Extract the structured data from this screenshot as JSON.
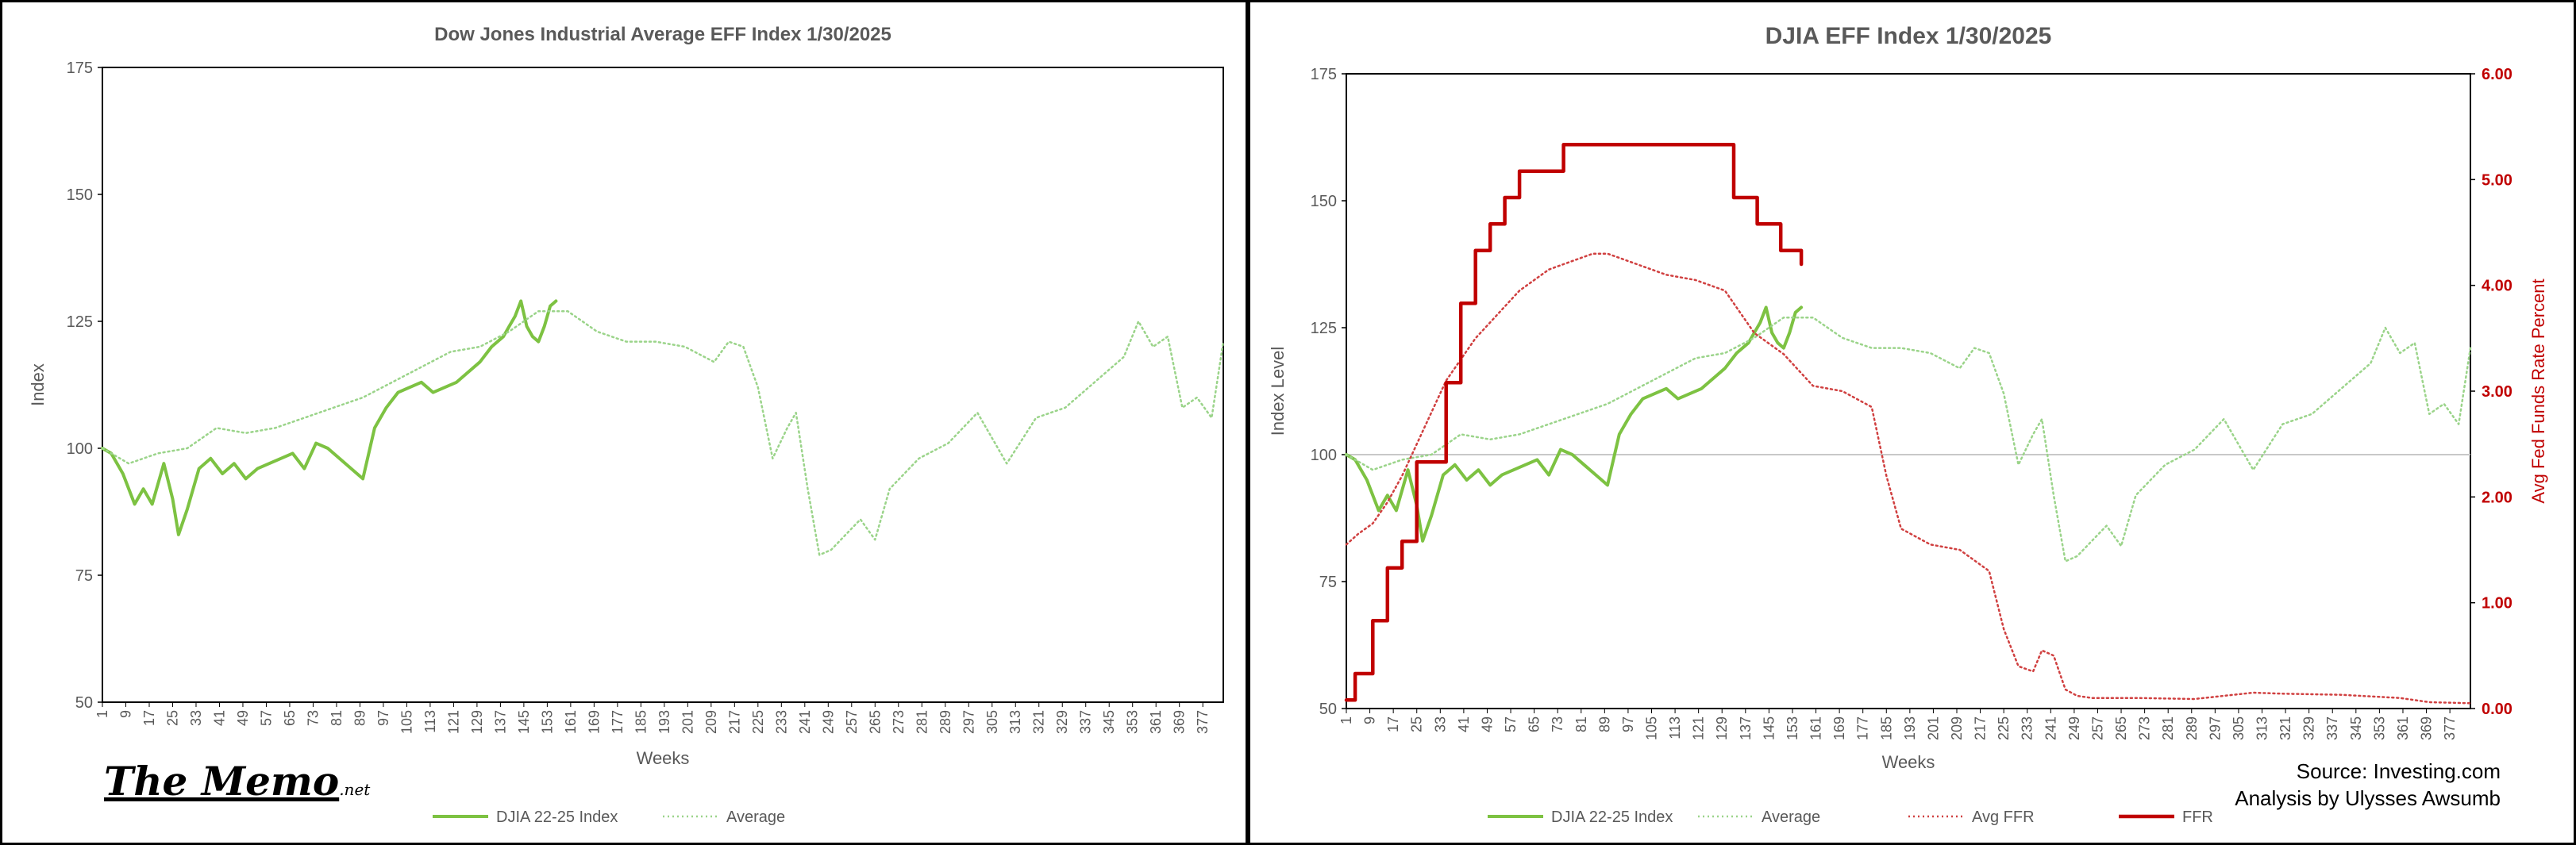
{
  "colors": {
    "djia": "#7DC242",
    "average": "#9BD48A",
    "avg_ffr": "#D04040",
    "ffr": "#C00000",
    "axis_text": "#595959",
    "right_axis_text": "#C00000"
  },
  "logo": {
    "main": "The Memo",
    "suffix": ".net"
  },
  "source": {
    "line1": "Source: Investing.com",
    "line2": "Analysis by Ulysses Awsumb"
  },
  "chart_data": [
    {
      "type": "line",
      "title": "Dow Jones Industrial Average EFF Index 1/30/2025",
      "xlabel": "Weeks",
      "ylabel": "Index",
      "ylim": [
        50,
        175
      ],
      "yticks": [
        50,
        75,
        100,
        125,
        150,
        175
      ],
      "xlim": [
        1,
        384
      ],
      "xticks": [
        1,
        9,
        17,
        25,
        33,
        41,
        49,
        57,
        65,
        73,
        81,
        89,
        97,
        105,
        113,
        121,
        129,
        137,
        145,
        153,
        161,
        169,
        177,
        185,
        193,
        201,
        209,
        217,
        225,
        233,
        241,
        249,
        257,
        265,
        273,
        281,
        289,
        297,
        305,
        313,
        321,
        329,
        337,
        345,
        353,
        361,
        369,
        377
      ],
      "legend_position": "bottom",
      "grid": false,
      "series": [
        {
          "name": "DJIA 22-25 Index",
          "style": "solid",
          "x": [
            1,
            4,
            8,
            12,
            15,
            18,
            22,
            25,
            27,
            30,
            34,
            38,
            42,
            46,
            50,
            54,
            58,
            62,
            66,
            70,
            74,
            78,
            82,
            86,
            90,
            94,
            98,
            102,
            106,
            110,
            114,
            118,
            122,
            126,
            130,
            134,
            138,
            140,
            142,
            144,
            146,
            148,
            150,
            152,
            154,
            156
          ],
          "values": [
            100,
            99,
            95,
            89,
            92,
            89,
            97,
            90,
            83,
            88,
            96,
            98,
            95,
            97,
            94,
            96,
            97,
            98,
            99,
            96,
            101,
            100,
            98,
            96,
            94,
            104,
            108,
            111,
            112,
            113,
            111,
            112,
            113,
            115,
            117,
            120,
            122,
            124,
            126,
            129,
            124,
            122,
            121,
            124,
            128,
            129
          ]
        },
        {
          "name": "Average",
          "style": "dotted",
          "x": [
            1,
            10,
            20,
            30,
            40,
            50,
            60,
            70,
            80,
            90,
            100,
            110,
            120,
            130,
            140,
            150,
            160,
            170,
            180,
            190,
            200,
            210,
            215,
            220,
            225,
            230,
            235,
            238,
            242,
            246,
            250,
            255,
            260,
            265,
            270,
            280,
            290,
            300,
            310,
            320,
            330,
            340,
            350,
            355,
            360,
            365,
            370,
            375,
            380,
            384
          ],
          "values": [
            100,
            97,
            99,
            100,
            104,
            103,
            104,
            106,
            108,
            110,
            113,
            116,
            119,
            120,
            123,
            127,
            127,
            123,
            121,
            121,
            120,
            117,
            121,
            120,
            112,
            98,
            104,
            107,
            92,
            79,
            80,
            83,
            86,
            82,
            92,
            98,
            101,
            107,
            97,
            106,
            108,
            113,
            118,
            125,
            120,
            122,
            108,
            110,
            106,
            121
          ]
        }
      ]
    },
    {
      "type": "line",
      "title": "DJIA EFF Index 1/30/2025",
      "xlabel": "Weeks",
      "ylabel": "Index Level",
      "y2label": "Avg Fed Funds Rate Percent",
      "ylim": [
        50,
        175
      ],
      "yticks": [
        50,
        75,
        100,
        125,
        150,
        175
      ],
      "y2lim": [
        0,
        6
      ],
      "y2ticks": [
        "0.00",
        "1.00",
        "2.00",
        "3.00",
        "4.00",
        "5.00",
        "6.00"
      ],
      "xlim": [
        1,
        384
      ],
      "xticks": [
        1,
        9,
        17,
        25,
        33,
        41,
        49,
        57,
        65,
        73,
        81,
        89,
        97,
        105,
        113,
        121,
        129,
        137,
        145,
        153,
        161,
        169,
        177,
        185,
        193,
        201,
        209,
        217,
        225,
        233,
        241,
        249,
        257,
        265,
        273,
        281,
        289,
        297,
        305,
        313,
        321,
        329,
        337,
        345,
        353,
        361,
        369,
        377
      ],
      "reference_line_y": 100,
      "legend_position": "bottom",
      "grid": false,
      "series": [
        {
          "name": "DJIA 22-25 Index",
          "style": "solid",
          "axis": "left",
          "x": [
            1,
            4,
            8,
            12,
            15,
            18,
            22,
            25,
            27,
            30,
            34,
            38,
            42,
            46,
            50,
            54,
            58,
            62,
            66,
            70,
            74,
            78,
            82,
            86,
            90,
            94,
            98,
            102,
            106,
            110,
            114,
            118,
            122,
            126,
            130,
            134,
            138,
            140,
            142,
            144,
            146,
            148,
            150,
            152,
            154,
            156
          ],
          "values": [
            100,
            99,
            95,
            89,
            92,
            89,
            97,
            90,
            83,
            88,
            96,
            98,
            95,
            97,
            94,
            96,
            97,
            98,
            99,
            96,
            101,
            100,
            98,
            96,
            94,
            104,
            108,
            111,
            112,
            113,
            111,
            112,
            113,
            115,
            117,
            120,
            122,
            124,
            126,
            129,
            124,
            122,
            121,
            124,
            128,
            129
          ]
        },
        {
          "name": "Average",
          "style": "dotted",
          "axis": "left",
          "x": [
            1,
            10,
            20,
            30,
            40,
            50,
            60,
            70,
            80,
            90,
            100,
            110,
            120,
            130,
            140,
            150,
            160,
            170,
            180,
            190,
            200,
            210,
            215,
            220,
            225,
            230,
            235,
            238,
            242,
            246,
            250,
            255,
            260,
            265,
            270,
            280,
            290,
            300,
            310,
            320,
            330,
            340,
            350,
            355,
            360,
            365,
            370,
            375,
            380,
            384
          ],
          "values": [
            100,
            97,
            99,
            100,
            104,
            103,
            104,
            106,
            108,
            110,
            113,
            116,
            119,
            120,
            123,
            127,
            127,
            123,
            121,
            121,
            120,
            117,
            121,
            120,
            112,
            98,
            104,
            107,
            92,
            79,
            80,
            83,
            86,
            82,
            92,
            98,
            101,
            107,
            97,
            106,
            108,
            113,
            118,
            125,
            120,
            122,
            108,
            110,
            106,
            121
          ]
        },
        {
          "name": "Avg FFR",
          "style": "dotted",
          "axis": "right",
          "x": [
            1,
            5,
            10,
            15,
            20,
            25,
            30,
            35,
            40,
            45,
            50,
            55,
            60,
            65,
            70,
            75,
            80,
            85,
            90,
            95,
            100,
            110,
            120,
            130,
            140,
            150,
            160,
            170,
            180,
            185,
            190,
            200,
            210,
            220,
            225,
            230,
            235,
            238,
            242,
            246,
            250,
            255,
            270,
            290,
            300,
            310,
            320,
            340,
            360,
            370,
            384
          ],
          "values": [
            1.55,
            1.65,
            1.75,
            1.95,
            2.2,
            2.5,
            2.8,
            3.1,
            3.3,
            3.5,
            3.65,
            3.8,
            3.95,
            4.05,
            4.15,
            4.2,
            4.25,
            4.3,
            4.3,
            4.25,
            4.2,
            4.1,
            4.05,
            3.95,
            3.55,
            3.35,
            3.05,
            3.0,
            2.85,
            2.2,
            1.7,
            1.55,
            1.5,
            1.3,
            0.75,
            0.4,
            0.35,
            0.55,
            0.5,
            0.18,
            0.12,
            0.1,
            0.1,
            0.09,
            0.12,
            0.15,
            0.14,
            0.13,
            0.1,
            0.06,
            0.05
          ]
        },
        {
          "name": "FFR",
          "style": "solid",
          "axis": "right",
          "x": [
            1,
            4,
            10,
            15,
            20,
            25,
            30,
            35,
            40,
            45,
            50,
            55,
            60,
            70,
            75,
            80,
            90,
            100,
            110,
            120,
            125,
            128,
            133,
            138,
            141,
            146,
            149,
            153,
            156
          ],
          "values": [
            0.08,
            0.33,
            0.83,
            1.33,
            1.58,
            2.33,
            2.33,
            3.08,
            3.83,
            4.33,
            4.58,
            4.83,
            5.08,
            5.08,
            5.33,
            5.33,
            5.33,
            5.33,
            5.33,
            5.33,
            5.33,
            5.33,
            4.83,
            4.83,
            4.58,
            4.58,
            4.33,
            4.33,
            4.2
          ]
        }
      ]
    }
  ]
}
